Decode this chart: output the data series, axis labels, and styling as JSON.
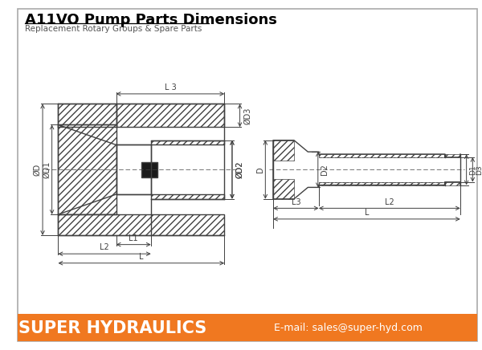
{
  "title": "A11VO Pump Parts Dimensions",
  "subtitle": "Replacement Rotary Groups & Spare Parts",
  "footer_text": "SUPER HYDRAULICS",
  "footer_email": "E-mail: sales@super-hyd.com",
  "footer_bg": "#F07820",
  "bg_color": "#FFFFFF",
  "line_color": "#404040",
  "dim_color": "#404040",
  "title_fontsize": 13,
  "subtitle_fontsize": 7.5,
  "footer_fontsize": 15,
  "email_fontsize": 9,
  "lw": 1.0,
  "dim_lw": 0.7
}
